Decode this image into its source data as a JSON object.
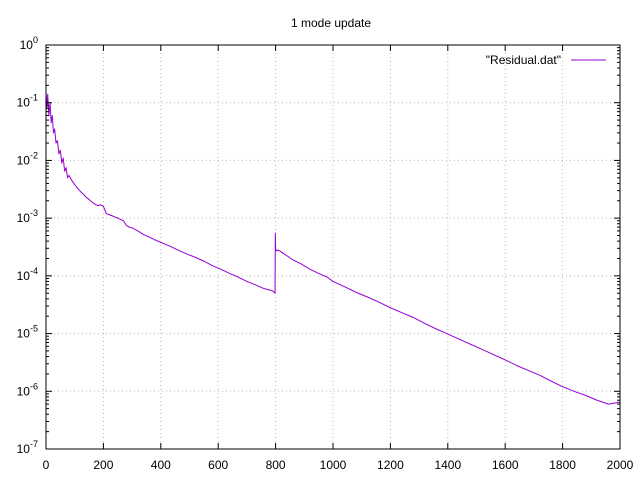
{
  "chart_data": {
    "type": "line",
    "title": "1 mode update",
    "xlabel": "",
    "ylabel": "",
    "xlim": [
      0,
      2000
    ],
    "ylim": [
      1e-07,
      1
    ],
    "yscale": "log",
    "grid": true,
    "legend_position": "top-right",
    "x_ticks": [
      "0",
      "200",
      "400",
      "600",
      "800",
      "1000",
      "1200",
      "1400",
      "1600",
      "1800",
      "2000"
    ],
    "y_ticks": [
      {
        "base": "10",
        "exp": "0"
      },
      {
        "base": "10",
        "exp": "-1"
      },
      {
        "base": "10",
        "exp": "-2"
      },
      {
        "base": "10",
        "exp": "-3"
      },
      {
        "base": "10",
        "exp": "-4"
      },
      {
        "base": "10",
        "exp": "-5"
      },
      {
        "base": "10",
        "exp": "-6"
      },
      {
        "base": "10",
        "exp": "-7"
      }
    ],
    "series": [
      {
        "name": "\"Residual.dat\"",
        "color": "#9400d3",
        "x": [
          0,
          3,
          6,
          10,
          14,
          18,
          22,
          26,
          30,
          35,
          40,
          45,
          50,
          55,
          60,
          65,
          70,
          75,
          80,
          90,
          100,
          110,
          120,
          130,
          140,
          150,
          160,
          170,
          180,
          190,
          200,
          210,
          220,
          230,
          240,
          250,
          260,
          270,
          280,
          290,
          300,
          320,
          340,
          360,
          380,
          400,
          430,
          460,
          490,
          520,
          550,
          580,
          610,
          640,
          670,
          700,
          730,
          760,
          790,
          798,
          799,
          800,
          802,
          804,
          810,
          830,
          860,
          890,
          920,
          950,
          980,
          1000,
          1040,
          1080,
          1120,
          1160,
          1200,
          1240,
          1280,
          1320,
          1360,
          1400,
          1440,
          1480,
          1520,
          1560,
          1600,
          1640,
          1680,
          1720,
          1760,
          1800,
          1840,
          1880,
          1920,
          1960,
          2000
        ],
        "y": [
          0.15,
          0.08,
          0.14,
          0.06,
          0.1,
          0.045,
          0.06,
          0.03,
          0.035,
          0.02,
          0.022,
          0.013,
          0.015,
          0.009,
          0.011,
          0.0065,
          0.0075,
          0.005,
          0.0055,
          0.0045,
          0.0038,
          0.0033,
          0.0029,
          0.0026,
          0.0023,
          0.0021,
          0.0019,
          0.00175,
          0.00165,
          0.0017,
          0.0016,
          0.0012,
          0.00115,
          0.0011,
          0.00105,
          0.001,
          0.00095,
          0.0009,
          0.00075,
          0.0007,
          0.00068,
          0.0006,
          0.00052,
          0.00047,
          0.00042,
          0.00038,
          0.00033,
          0.00028,
          0.00024,
          0.00021,
          0.00018,
          0.00015,
          0.00013,
          0.00011,
          9.5e-05,
          8e-05,
          7e-05,
          6e-05,
          5.5e-05,
          5e-05,
          0.00055,
          0.0003,
          0.00028,
          0.00027,
          0.00028,
          0.00024,
          0.00019,
          0.00016,
          0.00013,
          0.00011,
          9.5e-05,
          8e-05,
          6.5e-05,
          5.2e-05,
          4.3e-05,
          3.5e-05,
          2.8e-05,
          2.3e-05,
          1.9e-05,
          1.5e-05,
          1.2e-05,
          9.8e-06,
          8e-06,
          6.5e-06,
          5.3e-06,
          4.3e-06,
          3.5e-06,
          2.8e-06,
          2.3e-06,
          1.9e-06,
          1.5e-06,
          1.2e-06,
          1e-06,
          8.5e-07,
          7e-07,
          6e-07,
          6.5e-07
        ]
      }
    ]
  }
}
